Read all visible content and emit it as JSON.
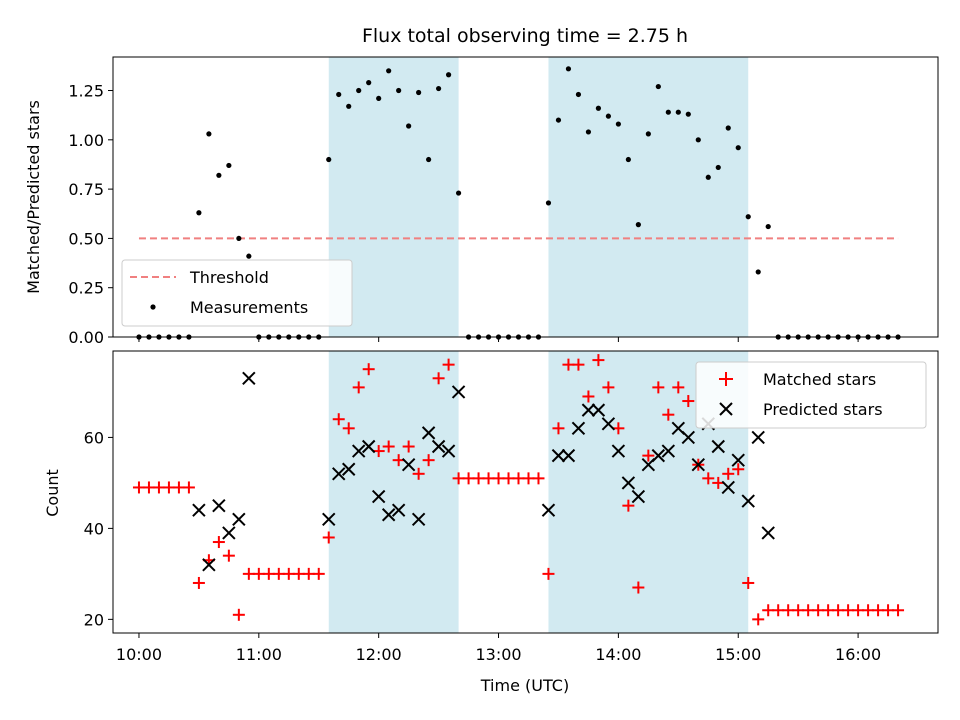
{
  "chart_data": [
    {
      "type": "scatter",
      "title": "Flux total observing time = 2.75 h",
      "xlabel": "",
      "ylabel": "Matched/Predicted stars",
      "xlim": [
        "09:47",
        "16:40"
      ],
      "ylim": [
        0,
        1.42
      ],
      "yticks": [
        "0.00",
        "0.25",
        "0.50",
        "0.75",
        "1.00",
        "1.25"
      ],
      "ytick_values": [
        0,
        0.25,
        0.5,
        0.75,
        1.0,
        1.25
      ],
      "xtick_values": [
        "10:00",
        "11:00",
        "12:00",
        "13:00",
        "14:00",
        "15:00",
        "16:00"
      ],
      "shaded_intervals": [
        [
          "11:35",
          "12:40"
        ],
        [
          "13:25",
          "15:05"
        ]
      ],
      "shade_color": "#add8e6",
      "legend": {
        "position": "lower-left",
        "entries": [
          "Threshold",
          "Measurements"
        ]
      },
      "threshold": {
        "name": "Threshold",
        "value": 0.5,
        "x": [
          "10:00",
          "16:20"
        ],
        "color": "#f08080",
        "style": "dashed"
      },
      "series": [
        {
          "name": "Measurements",
          "color": "#000000",
          "marker": "dot",
          "points": [
            [
              "10:00",
              0
            ],
            [
              "10:05",
              0
            ],
            [
              "10:10",
              0
            ],
            [
              "10:15",
              0
            ],
            [
              "10:20",
              0
            ],
            [
              "10:25",
              0
            ],
            [
              "10:30",
              0.63
            ],
            [
              "10:35",
              1.03
            ],
            [
              "10:40",
              0.82
            ],
            [
              "10:45",
              0.87
            ],
            [
              "10:50",
              0.5
            ],
            [
              "10:55",
              0.41
            ],
            [
              "11:00",
              0
            ],
            [
              "11:05",
              0
            ],
            [
              "11:10",
              0
            ],
            [
              "11:15",
              0
            ],
            [
              "11:20",
              0
            ],
            [
              "11:25",
              0
            ],
            [
              "11:30",
              0
            ],
            [
              "11:35",
              0.9
            ],
            [
              "11:40",
              1.23
            ],
            [
              "11:45",
              1.17
            ],
            [
              "11:50",
              1.25
            ],
            [
              "11:55",
              1.29
            ],
            [
              "12:00",
              1.21
            ],
            [
              "12:05",
              1.35
            ],
            [
              "12:10",
              1.25
            ],
            [
              "12:15",
              1.07
            ],
            [
              "12:20",
              1.24
            ],
            [
              "12:25",
              0.9
            ],
            [
              "12:30",
              1.26
            ],
            [
              "12:35",
              1.33
            ],
            [
              "12:40",
              0.73
            ],
            [
              "12:45",
              0
            ],
            [
              "12:50",
              0
            ],
            [
              "12:55",
              0
            ],
            [
              "13:00",
              0
            ],
            [
              "13:05",
              0
            ],
            [
              "13:10",
              0
            ],
            [
              "13:15",
              0
            ],
            [
              "13:20",
              0
            ],
            [
              "13:25",
              0.68
            ],
            [
              "13:30",
              1.1
            ],
            [
              "13:35",
              1.36
            ],
            [
              "13:40",
              1.23
            ],
            [
              "13:45",
              1.04
            ],
            [
              "13:50",
              1.16
            ],
            [
              "13:55",
              1.12
            ],
            [
              "14:00",
              1.08
            ],
            [
              "14:05",
              0.9
            ],
            [
              "14:10",
              0.57
            ],
            [
              "14:15",
              1.03
            ],
            [
              "14:20",
              1.27
            ],
            [
              "14:25",
              1.14
            ],
            [
              "14:30",
              1.14
            ],
            [
              "14:35",
              1.13
            ],
            [
              "14:40",
              1.0
            ],
            [
              "14:45",
              0.81
            ],
            [
              "14:50",
              0.86
            ],
            [
              "14:55",
              1.06
            ],
            [
              "15:00",
              0.96
            ],
            [
              "15:05",
              0.61
            ],
            [
              "15:10",
              0.33
            ],
            [
              "15:15",
              0.56
            ],
            [
              "15:20",
              0
            ],
            [
              "15:25",
              0
            ],
            [
              "15:30",
              0
            ],
            [
              "15:35",
              0
            ],
            [
              "15:40",
              0
            ],
            [
              "15:45",
              0
            ],
            [
              "15:50",
              0
            ],
            [
              "15:55",
              0
            ],
            [
              "16:00",
              0
            ],
            [
              "16:05",
              0
            ],
            [
              "16:10",
              0
            ],
            [
              "16:15",
              0
            ],
            [
              "16:20",
              0
            ]
          ]
        }
      ]
    },
    {
      "type": "scatter",
      "title": "",
      "xlabel": "Time (UTC)",
      "ylabel": "Count",
      "xlim": [
        "09:47",
        "16:40"
      ],
      "ylim": [
        17,
        79
      ],
      "yticks": [
        "20",
        "40",
        "60"
      ],
      "ytick_values": [
        20,
        40,
        60
      ],
      "xticks": [
        "10:00",
        "11:00",
        "12:00",
        "13:00",
        "14:00",
        "15:00",
        "16:00"
      ],
      "xtick_values": [
        "10:00",
        "11:00",
        "12:00",
        "13:00",
        "14:00",
        "15:00",
        "16:00"
      ],
      "shaded_intervals": [
        [
          "11:35",
          "12:40"
        ],
        [
          "13:25",
          "15:05"
        ]
      ],
      "shade_color": "#add8e6",
      "legend": {
        "position": "top-right",
        "entries": [
          "Matched stars",
          "Predicted stars"
        ]
      },
      "series": [
        {
          "name": "Matched stars",
          "color": "#ff0000",
          "marker": "plus",
          "points": [
            [
              "10:00",
              49
            ],
            [
              "10:05",
              49
            ],
            [
              "10:10",
              49
            ],
            [
              "10:15",
              49
            ],
            [
              "10:20",
              49
            ],
            [
              "10:25",
              49
            ],
            [
              "10:30",
              28
            ],
            [
              "10:35",
              33
            ],
            [
              "10:40",
              37
            ],
            [
              "10:45",
              34
            ],
            [
              "10:50",
              21
            ],
            [
              "10:55",
              30
            ],
            [
              "11:00",
              30
            ],
            [
              "11:05",
              30
            ],
            [
              "11:10",
              30
            ],
            [
              "11:15",
              30
            ],
            [
              "11:20",
              30
            ],
            [
              "11:25",
              30
            ],
            [
              "11:30",
              30
            ],
            [
              "11:35",
              38
            ],
            [
              "11:40",
              64
            ],
            [
              "11:45",
              62
            ],
            [
              "11:50",
              71
            ],
            [
              "11:55",
              75
            ],
            [
              "12:00",
              57
            ],
            [
              "12:05",
              58
            ],
            [
              "12:10",
              55
            ],
            [
              "12:15",
              58
            ],
            [
              "12:20",
              52
            ],
            [
              "12:25",
              55
            ],
            [
              "12:30",
              73
            ],
            [
              "12:35",
              76
            ],
            [
              "12:40",
              51
            ],
            [
              "12:45",
              51
            ],
            [
              "12:50",
              51
            ],
            [
              "12:55",
              51
            ],
            [
              "13:00",
              51
            ],
            [
              "13:05",
              51
            ],
            [
              "13:10",
              51
            ],
            [
              "13:15",
              51
            ],
            [
              "13:20",
              51
            ],
            [
              "13:25",
              30
            ],
            [
              "13:30",
              62
            ],
            [
              "13:35",
              76
            ],
            [
              "13:40",
              76
            ],
            [
              "13:45",
              69
            ],
            [
              "13:50",
              77
            ],
            [
              "13:55",
              71
            ],
            [
              "14:00",
              62
            ],
            [
              "14:05",
              45
            ],
            [
              "14:10",
              27
            ],
            [
              "14:15",
              56
            ],
            [
              "14:20",
              71
            ],
            [
              "14:25",
              65
            ],
            [
              "14:30",
              71
            ],
            [
              "14:35",
              68
            ],
            [
              "14:40",
              54
            ],
            [
              "14:45",
              51
            ],
            [
              "14:50",
              50
            ],
            [
              "14:55",
              52
            ],
            [
              "15:00",
              53
            ],
            [
              "15:05",
              28
            ],
            [
              "15:10",
              20
            ],
            [
              "15:15",
              22
            ],
            [
              "15:20",
              22
            ],
            [
              "15:25",
              22
            ],
            [
              "15:30",
              22
            ],
            [
              "15:35",
              22
            ],
            [
              "15:40",
              22
            ],
            [
              "15:45",
              22
            ],
            [
              "15:50",
              22
            ],
            [
              "15:55",
              22
            ],
            [
              "16:00",
              22
            ],
            [
              "16:05",
              22
            ],
            [
              "16:10",
              22
            ],
            [
              "16:15",
              22
            ],
            [
              "16:20",
              22
            ]
          ]
        },
        {
          "name": "Predicted stars",
          "color": "#000000",
          "marker": "x",
          "points": [
            [
              "10:30",
              44
            ],
            [
              "10:35",
              32
            ],
            [
              "10:40",
              45
            ],
            [
              "10:45",
              39
            ],
            [
              "10:50",
              42
            ],
            [
              "10:55",
              73
            ],
            [
              "11:35",
              42
            ],
            [
              "11:40",
              52
            ],
            [
              "11:45",
              53
            ],
            [
              "11:50",
              57
            ],
            [
              "11:55",
              58
            ],
            [
              "12:00",
              47
            ],
            [
              "12:05",
              43
            ],
            [
              "12:10",
              44
            ],
            [
              "12:15",
              54
            ],
            [
              "12:20",
              42
            ],
            [
              "12:25",
              61
            ],
            [
              "12:30",
              58
            ],
            [
              "12:35",
              57
            ],
            [
              "12:40",
              70
            ],
            [
              "13:25",
              44
            ],
            [
              "13:30",
              56
            ],
            [
              "13:35",
              56
            ],
            [
              "13:40",
              62
            ],
            [
              "13:45",
              66
            ],
            [
              "13:50",
              66
            ],
            [
              "13:55",
              63
            ],
            [
              "14:00",
              57
            ],
            [
              "14:05",
              50
            ],
            [
              "14:10",
              47
            ],
            [
              "14:15",
              54
            ],
            [
              "14:20",
              56
            ],
            [
              "14:25",
              57
            ],
            [
              "14:30",
              62
            ],
            [
              "14:35",
              60
            ],
            [
              "14:40",
              54
            ],
            [
              "14:45",
              63
            ],
            [
              "14:50",
              58
            ],
            [
              "14:55",
              49
            ],
            [
              "15:00",
              55
            ],
            [
              "15:05",
              46
            ],
            [
              "15:10",
              60
            ],
            [
              "15:15",
              39
            ]
          ]
        }
      ]
    }
  ]
}
